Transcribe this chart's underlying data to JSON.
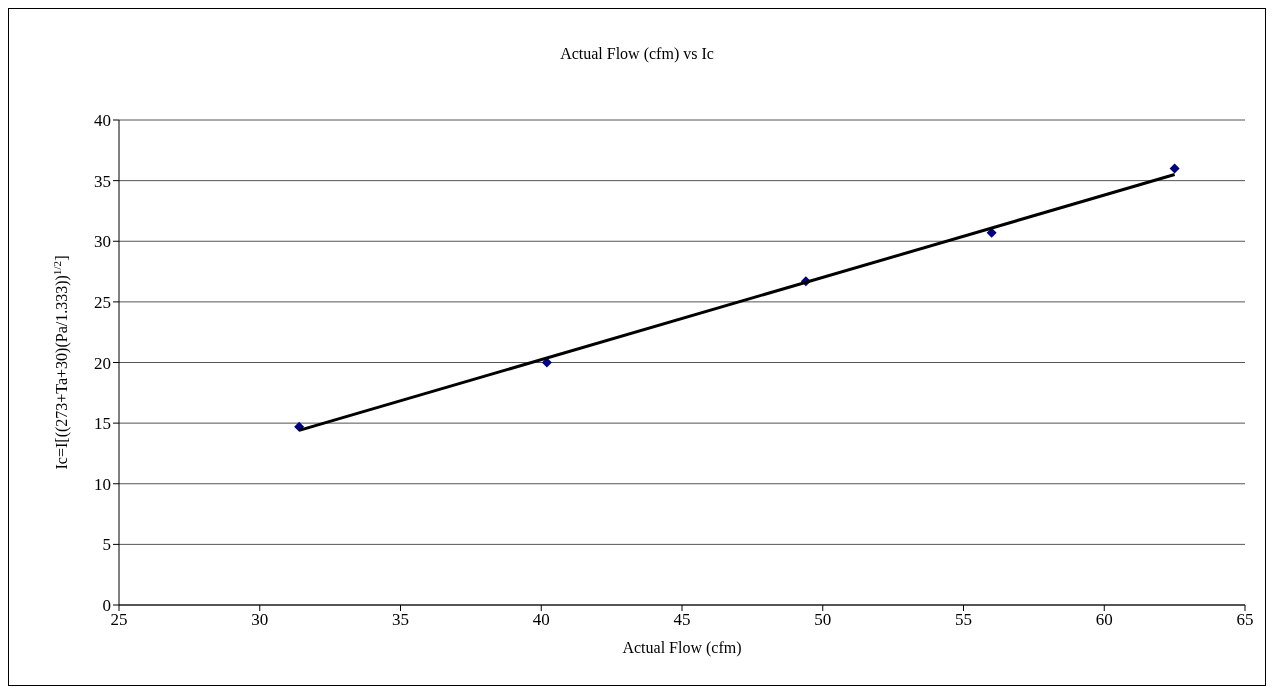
{
  "chart_data": {
    "type": "scatter",
    "title": "Actual Flow (cfm) vs Ic",
    "xlabel": "Actual Flow (cfm)",
    "ylabel": "Ic=I[((273+Ta+30)(Pa/1.333))$^{1/2}$]",
    "series": [
      {
        "color": "#000080",
        "marker": "diamond",
        "x": [
          31.4,
          40.2,
          49.4,
          56.0,
          62.5
        ],
        "values": [
          14.7,
          20.0,
          26.7,
          30.7,
          36.0
        ]
      },
      {
        "type": "line",
        "color": "#000000",
        "marker": "none",
        "x": [
          31.4,
          62.5
        ],
        "values": [
          14.4,
          35.5
        ]
      }
    ],
    "xlim": [
      25,
      65
    ],
    "xticks": [
      25,
      30,
      35,
      40,
      45,
      50,
      55,
      60,
      65
    ],
    "ylim": [
      0,
      40
    ],
    "yticks": [
      0,
      5,
      10,
      15,
      20,
      25,
      30,
      35,
      40
    ],
    "grid": "y"
  }
}
